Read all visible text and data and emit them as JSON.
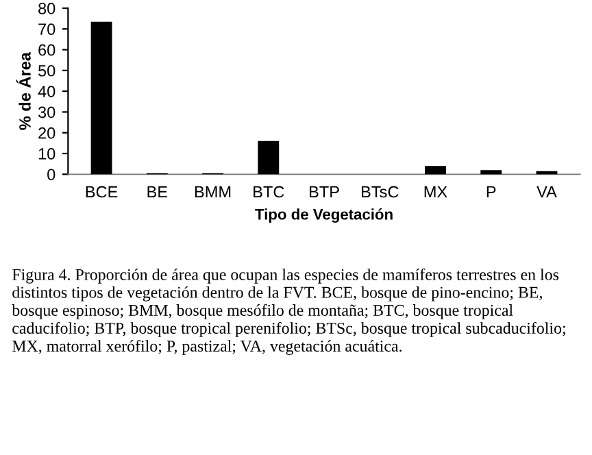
{
  "chart_data": {
    "type": "bar",
    "categories": [
      "BCE",
      "BE",
      "BMM",
      "BTC",
      "BTP",
      "BTsC",
      "MX",
      "P",
      "VA"
    ],
    "values": [
      73.5,
      0.5,
      0.5,
      16,
      0,
      0,
      4,
      2,
      1.5
    ],
    "color": "#000000",
    "xlabel": "Tipo de Vegetación",
    "ylabel": "% de Área",
    "ylim": [
      0,
      80
    ],
    "yticks": [
      0,
      10,
      20,
      30,
      40,
      50,
      60,
      70,
      80
    ],
    "grid": false,
    "legend": false,
    "annotations": [
      "Figura 4. Proporción de área que ocupan las especies de mamíferos terrestres en los distintos tipos de vegetación dentro de la FVT. BCE, bosque de pino-encino; BE, bosque espinoso; BMM, bosque mesófilo de montaña; BTC, bosque tropical caducifolio; BTP, bosque tropical perenifolio; BTSc, bosque tropical subcaducifolio; MX, matorral xerófilo; P, pastizal; VA, vegetación acuática."
    ]
  }
}
